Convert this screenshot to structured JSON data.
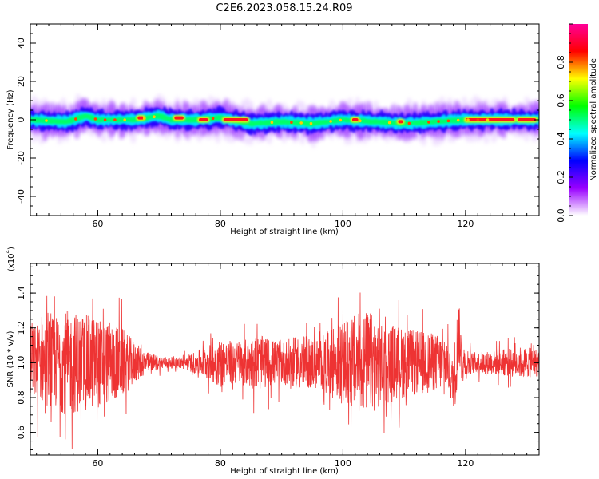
{
  "title": "C2E6.2023.058.15.24.R09",
  "chart_data": [
    {
      "type": "heatmap",
      "xlabel": "Height of straight line (km)",
      "ylabel": "Frequency (Hz)",
      "xlim": [
        49,
        132
      ],
      "ylim": [
        -50,
        50
      ],
      "x_ticks": [
        60,
        80,
        100,
        120
      ],
      "y_ticks": [
        40,
        20,
        0,
        -20,
        -40
      ],
      "x_tick_labels": [
        "60",
        "80",
        "100",
        "120"
      ],
      "y_tick_labels": [
        "40",
        "20",
        "0",
        "-20",
        "-40"
      ],
      "colorbar": {
        "label": "Normalized spectral amplitude",
        "range": [
          0,
          1
        ],
        "ticks": [
          0.0,
          0.2,
          0.4,
          0.6,
          0.8
        ],
        "tick_labels": [
          "0.0",
          "0.2",
          "0.4",
          "0.6",
          "0.8"
        ],
        "colors": [
          "#ffffff",
          "#9900ff",
          "#0000ff",
          "#00ffff",
          "#00ff00",
          "#ffff00",
          "#ff0000",
          "#ff0099"
        ]
      },
      "band": {
        "center_hz": [
          [
            49,
            0
          ],
          [
            55,
            -1
          ],
          [
            58,
            2
          ],
          [
            60,
            0
          ],
          [
            66,
            0
          ],
          [
            70,
            2
          ],
          [
            72,
            0
          ],
          [
            76,
            0
          ],
          [
            80,
            1
          ],
          [
            85,
            -2
          ],
          [
            90,
            -1
          ],
          [
            95,
            -2
          ],
          [
            100,
            0
          ],
          [
            105,
            -1
          ],
          [
            110,
            -2
          ],
          [
            115,
            -1
          ],
          [
            120,
            0
          ],
          [
            125,
            0
          ],
          [
            132,
            0
          ]
        ],
        "core_halfwidth_hz": 2,
        "outer_halfwidth_hz": 8
      },
      "peaks": [
        {
          "x_start": 76.5,
          "x_end": 78,
          "y": 0
        },
        {
          "x_start": 80.5,
          "x_end": 84.5,
          "y": 0
        },
        {
          "x_start": 120,
          "x_end": 128,
          "y": 0
        },
        {
          "x_start": 128.5,
          "x_end": 131.5,
          "y": 0
        },
        {
          "x_start": 101.5,
          "x_end": 102.5,
          "y": 0
        },
        {
          "x_start": 109,
          "x_end": 109.8,
          "y": -1
        },
        {
          "x_start": 72.5,
          "x_end": 74,
          "y": 1
        },
        {
          "x_start": 66.5,
          "x_end": 67.5,
          "y": 1
        }
      ]
    },
    {
      "type": "line",
      "xlabel": "Height of straight line (km)",
      "ylabel": "SNR (10 * v/v)",
      "multiplier_label": "(x10",
      "multiplier_exp": "4",
      "multiplier_close": ")",
      "xlim": [
        49,
        132
      ],
      "ylim": [
        0.47,
        1.57
      ],
      "x_ticks": [
        60,
        80,
        100,
        120
      ],
      "y_ticks": [
        1.4,
        1.2,
        1.0,
        0.8,
        0.6
      ],
      "x_tick_labels": [
        "60",
        "80",
        "100",
        "120"
      ],
      "y_tick_labels": [
        "1.4",
        "1.2",
        "1.0",
        "0.8",
        "0.6"
      ],
      "color": "#ee3333",
      "baseline": 1.0,
      "amplitude_envelope": [
        [
          49,
          0.22
        ],
        [
          52,
          0.25
        ],
        [
          55,
          0.3
        ],
        [
          58,
          0.28
        ],
        [
          61,
          0.25
        ],
        [
          64,
          0.2
        ],
        [
          66,
          0.12
        ],
        [
          68,
          0.06
        ],
        [
          70,
          0.04
        ],
        [
          73,
          0.03
        ],
        [
          75,
          0.05
        ],
        [
          78,
          0.1
        ],
        [
          80,
          0.14
        ],
        [
          83,
          0.12
        ],
        [
          86,
          0.16
        ],
        [
          90,
          0.12
        ],
        [
          93,
          0.16
        ],
        [
          96,
          0.14
        ],
        [
          99,
          0.22
        ],
        [
          102,
          0.28
        ],
        [
          104,
          0.3
        ],
        [
          107,
          0.24
        ],
        [
          110,
          0.2
        ],
        [
          113,
          0.18
        ],
        [
          116,
          0.16
        ],
        [
          117.5,
          0.12
        ],
        [
          118.5,
          0.22
        ],
        [
          119.5,
          0.12
        ],
        [
          121,
          0.06
        ],
        [
          125,
          0.07
        ],
        [
          129,
          0.09
        ],
        [
          132,
          0.08
        ]
      ]
    }
  ]
}
